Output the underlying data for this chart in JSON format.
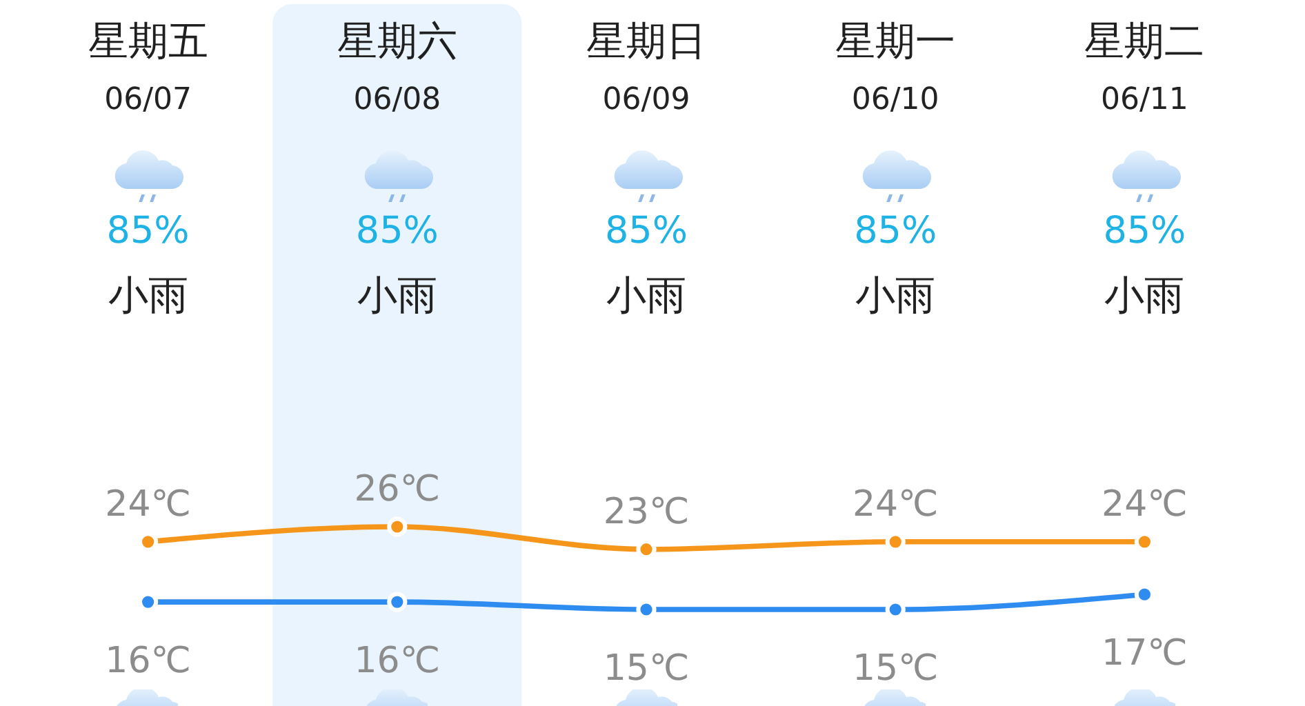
{
  "chart_data": {
    "type": "line",
    "categories": [
      "星期五",
      "星期六",
      "星期日",
      "星期一",
      "星期二"
    ],
    "series": [
      {
        "color": "#f5951a",
        "values": [
          24,
          26,
          23,
          24,
          24
        ],
        "value_labels": [
          "24℃",
          "26℃",
          "23℃",
          "24℃",
          "24℃"
        ]
      },
      {
        "color": "#2e8cf0",
        "values": [
          16,
          16,
          15,
          15,
          17
        ],
        "value_labels": [
          "16℃",
          "16℃",
          "15℃",
          "15℃",
          "17℃"
        ]
      }
    ],
    "marker": "circle",
    "tick_labels": "x",
    "bands": [
      {
        "axis": "x",
        "from": "星期六",
        "to": "星期六",
        "color": "#eaf4fe"
      }
    ],
    "annotations": [
      "06/07",
      "06/08",
      "06/09",
      "06/10",
      "06/11",
      "85%",
      "85%",
      "85%",
      "85%",
      "85%",
      "小雨",
      "小雨",
      "小雨",
      "小雨",
      "小雨"
    ]
  }
}
